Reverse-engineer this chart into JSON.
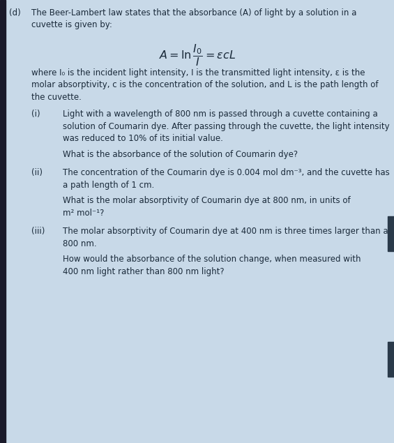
{
  "bg_color": "#c8d9e8",
  "text_color": "#1a2a3a",
  "figsize": [
    5.65,
    6.35
  ],
  "dpi": 100,
  "label_d": "(d)",
  "intro_line1": "The Beer-Lambert law states that the absorbance (A) of light by a solution in a",
  "intro_line2": "cuvette is given by:",
  "where_line1": "where I₀ is the incident light intensity, I is the transmitted light intensity, ε is the",
  "where_line2": "molar absorptivity, c is the concentration of the solution, and L is the path length of",
  "where_line3": "the cuvette.",
  "part_i_label": "(i)",
  "part_i_line1": "Light with a wavelength of 800 nm is passed through a cuvette containing a",
  "part_i_line2": "solution of Coumarin dye. After passing through the cuvette, the light intensity",
  "part_i_line3": "was reduced to 10% of its initial value.",
  "part_i_q": "What is the absorbance of the solution of Coumarin dye?",
  "part_ii_label": "(ii)",
  "part_ii_line1": "The concentration of the Coumarin dye is 0.004 mol dm⁻³, and the cuvette has",
  "part_ii_line2": "a path length of 1 cm.",
  "part_ii_q1": "What is the molar absorptivity of Coumarin dye at 800 nm, in units of",
  "part_ii_q2": "m² mol⁻¹?",
  "part_iii_label": "(iii)",
  "part_iii_line1": "The molar absorptivity of Coumarin dye at 400 nm is three times larger than at",
  "part_iii_line2": "800 nm.",
  "part_iii_q1": "How would the absorbance of the solution change, when measured with",
  "part_iii_q2": "400 nm light rather than 800 nm light?",
  "right_bar_color": "#2a3a4a",
  "left_bar_color": "#1a1a2a"
}
